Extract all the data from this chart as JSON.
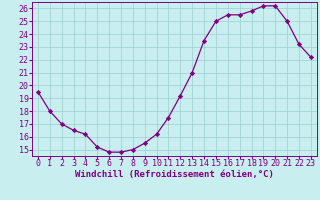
{
  "x": [
    0,
    1,
    2,
    3,
    4,
    5,
    6,
    7,
    8,
    9,
    10,
    11,
    12,
    13,
    14,
    15,
    16,
    17,
    18,
    19,
    20,
    21,
    22,
    23
  ],
  "y": [
    19.5,
    18.0,
    17.0,
    16.5,
    16.2,
    15.2,
    14.8,
    14.8,
    15.0,
    15.5,
    16.2,
    17.5,
    19.2,
    21.0,
    23.5,
    25.0,
    25.5,
    25.5,
    25.8,
    26.2,
    26.2,
    25.0,
    23.2,
    22.2
  ],
  "line_color": "#800080",
  "marker": "D",
  "marker_size": 2.2,
  "bg_color": "#C8EEF0",
  "grid_color": "#9ECECE",
  "xlabel": "Windchill (Refroidissement éolien,°C)",
  "xlabel_fontsize": 6.5,
  "ylabel_ticks": [
    15,
    16,
    17,
    18,
    19,
    20,
    21,
    22,
    23,
    24,
    25,
    26
  ],
  "xlim": [
    -0.5,
    23.5
  ],
  "ylim": [
    14.5,
    26.5
  ],
  "tick_fontsize": 6.0,
  "lw": 0.9
}
